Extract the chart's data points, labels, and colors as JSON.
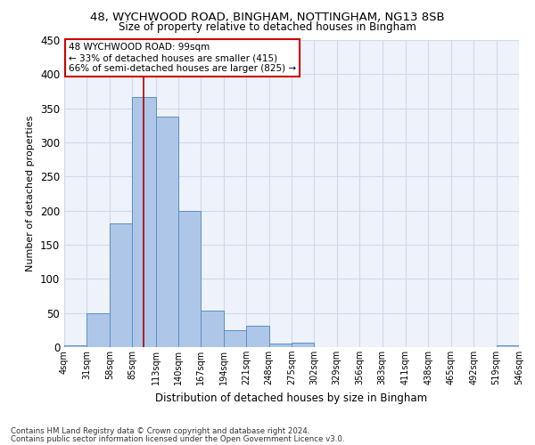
{
  "title_line1": "48, WYCHWOOD ROAD, BINGHAM, NOTTINGHAM, NG13 8SB",
  "title_line2": "Size of property relative to detached houses in Bingham",
  "xlabel": "Distribution of detached houses by size in Bingham",
  "ylabel": "Number of detached properties",
  "bin_edges": [
    4,
    31,
    58,
    85,
    113,
    140,
    167,
    194,
    221,
    248,
    275,
    302,
    329,
    356,
    383,
    411,
    438,
    465,
    492,
    519,
    546
  ],
  "bar_heights": [
    3,
    49,
    181,
    367,
    338,
    199,
    54,
    25,
    31,
    5,
    6,
    0,
    0,
    0,
    0,
    0,
    0,
    0,
    0,
    2
  ],
  "bar_color": "#aec6e8",
  "bar_edgecolor": "#5a8fc2",
  "grid_color": "#d0d8e8",
  "background_color": "#eef2fa",
  "property_size": 99,
  "vline_color": "#aa0000",
  "annotation_text": "48 WYCHWOOD ROAD: 99sqm\n← 33% of detached houses are smaller (415)\n66% of semi-detached houses are larger (825) →",
  "annotation_box_color": "#ffffff",
  "annotation_box_edgecolor": "#cc0000",
  "footnote1": "Contains HM Land Registry data © Crown copyright and database right 2024.",
  "footnote2": "Contains public sector information licensed under the Open Government Licence v3.0.",
  "ylim": [
    0,
    450
  ],
  "yticks": [
    0,
    50,
    100,
    150,
    200,
    250,
    300,
    350,
    400,
    450
  ]
}
